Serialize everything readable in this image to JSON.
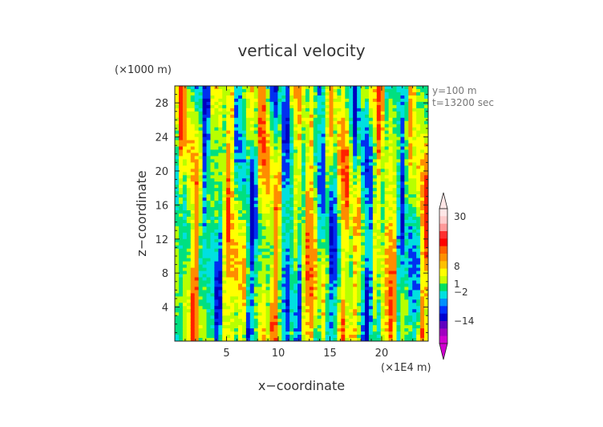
{
  "chart_data": {
    "type": "heatmap",
    "title": "vertical velocity",
    "xlabel": "x−coordinate",
    "ylabel": "z−coordinate",
    "x_unit": "(×1E4 m)",
    "y_unit": "(×1000 m)",
    "annotations": [
      "y=100  m",
      "t=13200 sec"
    ],
    "x_ticks": [
      5,
      10,
      15,
      20
    ],
    "y_ticks": [
      4,
      8,
      12,
      16,
      20,
      24,
      28
    ],
    "xlim": [
      0,
      24.5
    ],
    "ylim": [
      0,
      30
    ],
    "colorbar": {
      "labels": [
        {
          "value": 30,
          "text": "30"
        },
        {
          "value": 8,
          "text": "8"
        },
        {
          "value": 1,
          "text": "1"
        },
        {
          "value": -2,
          "text": "−2"
        },
        {
          "value": -14,
          "text": "−14"
        }
      ],
      "bins": [
        {
          "color": "#ffe6e6"
        },
        {
          "color": "#ffcccc"
        },
        {
          "color": "#ff9999"
        },
        {
          "color": "#ff3030"
        },
        {
          "color": "#ff0000"
        },
        {
          "color": "#ff6000"
        },
        {
          "color": "#ff9000"
        },
        {
          "color": "#ffc000"
        },
        {
          "color": "#ffff00"
        },
        {
          "color": "#c8ff00"
        },
        {
          "color": "#00e060"
        },
        {
          "color": "#00e0e0"
        },
        {
          "color": "#0090ff"
        },
        {
          "color": "#0030ff"
        },
        {
          "color": "#0000d0"
        },
        {
          "color": "#6000c0"
        },
        {
          "color": "#a000c0"
        },
        {
          "color": "#d000d0"
        }
      ],
      "top_color": "#ffe6e6",
      "bottom_color": "#d000d0"
    },
    "field_colors": {
      "strong_up": "#ff2000",
      "up": "#ff8c00",
      "weak_up": "#ffff00",
      "neutral": "#b8ff00",
      "weak_down": "#00e080",
      "down": "#00e0e0",
      "strong_down": "#0030f0",
      "very_strong_down": "#0000c0"
    }
  }
}
